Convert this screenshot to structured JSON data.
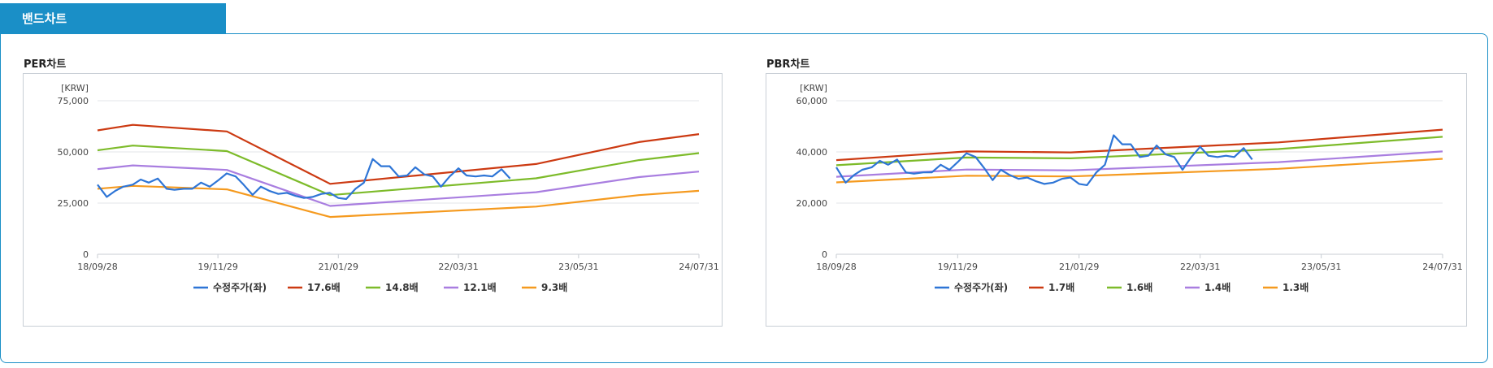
{
  "section_tab": {
    "label": "밴드차트"
  },
  "charts": [
    {
      "id": "per",
      "title": "PER차트",
      "unit": "[KRW]",
      "chart_data": {
        "type": "line",
        "title": "PER차트",
        "ylabel": "[KRW]",
        "ylim": [
          0,
          75000
        ],
        "yticks": [
          "75,000",
          "50,000",
          "25,000",
          "0"
        ],
        "ytick_values": [
          75000,
          50000,
          25000,
          0
        ],
        "xlim": [
          "2018-09-28",
          "2024-07-31"
        ],
        "xtick_labels": [
          "18/09/28",
          "19/11/29",
          "21/01/29",
          "22/03/31",
          "23/05/31",
          "24/07/31"
        ],
        "xtick_dates": [
          "2018-09-28",
          "2019-11-29",
          "2021-01-29",
          "2022-03-31",
          "2023-05-31",
          "2024-07-31"
        ],
        "grid": true,
        "legend": "bottom",
        "series": [
          {
            "name": "수정주가(좌)",
            "color": "#2e75d6",
            "x": [
              "2018-09-28",
              "2018-10-31",
              "2018-11-30",
              "2018-12-28",
              "2019-01-31",
              "2019-02-28",
              "2019-03-29",
              "2019-04-30",
              "2019-05-31",
              "2019-06-28",
              "2019-07-31",
              "2019-08-30",
              "2019-09-30",
              "2019-10-31",
              "2019-11-29",
              "2019-12-30",
              "2020-01-31",
              "2020-02-28",
              "2020-03-31",
              "2020-04-29",
              "2020-05-29",
              "2020-06-30",
              "2020-07-31",
              "2020-08-31",
              "2020-09-29",
              "2020-10-30",
              "2020-11-30",
              "2020-12-30",
              "2021-01-29",
              "2021-02-26",
              "2021-03-31",
              "2021-04-30",
              "2021-05-31",
              "2021-06-30",
              "2021-07-30",
              "2021-08-31",
              "2021-09-30",
              "2021-10-29",
              "2021-11-30",
              "2021-12-30",
              "2022-01-28",
              "2022-02-28",
              "2022-03-31",
              "2022-04-29",
              "2022-05-31",
              "2022-06-30",
              "2022-07-29",
              "2022-08-31",
              "2022-09-30"
            ],
            "values": [
              34000,
              28000,
              31000,
              33000,
              34000,
              36500,
              35000,
              37000,
              32000,
              31500,
              32000,
              32000,
              35000,
              33000,
              36000,
              39500,
              38000,
              34000,
              29000,
              33000,
              31000,
              29500,
              30000,
              28500,
              27500,
              28000,
              29500,
              30000,
              27500,
              27000,
              32000,
              35000,
              46500,
              43000,
              43000,
              38000,
              38500,
              42500,
              39000,
              38000,
              33000,
              38000,
              42000,
              38500,
              38000,
              38500,
              38000,
              41500,
              37000
            ]
          },
          {
            "name": "17.6배",
            "color": "#cc3a12",
            "x": [
              "2018-09-28",
              "2019-01-31",
              "2019-12-31",
              "2020-12-31",
              "2022-12-31",
              "2023-12-31",
              "2024-07-31"
            ],
            "values": [
              60500,
              63200,
              60000,
              34400,
              44100,
              54800,
              58700
            ]
          },
          {
            "name": "14.8배",
            "color": "#7dbb2a",
            "x": [
              "2018-09-28",
              "2019-01-31",
              "2019-12-31",
              "2020-12-31",
              "2022-12-31",
              "2023-12-31",
              "2024-07-31"
            ],
            "values": [
              50800,
              53100,
              50400,
              28900,
              37100,
              46000,
              49400
            ]
          },
          {
            "name": "12.1배",
            "color": "#a97ee0",
            "x": [
              "2018-09-28",
              "2019-01-31",
              "2019-12-31",
              "2020-12-31",
              "2022-12-31",
              "2023-12-31",
              "2024-07-31"
            ],
            "values": [
              41600,
              43400,
              41200,
              23600,
              30300,
              37700,
              40400
            ]
          },
          {
            "name": "9.3배",
            "color": "#f59a1f",
            "x": [
              "2018-09-28",
              "2019-01-31",
              "2019-12-31",
              "2020-12-31",
              "2022-12-31",
              "2023-12-31",
              "2024-07-31"
            ],
            "values": [
              32000,
              33400,
              31700,
              18200,
              23300,
              28900,
              31000
            ]
          }
        ]
      }
    },
    {
      "id": "pbr",
      "title": "PBR차트",
      "unit": "[KRW]",
      "chart_data": {
        "type": "line",
        "title": "PBR차트",
        "ylabel": "[KRW]",
        "ylim": [
          0,
          60000
        ],
        "yticks": [
          "60,000",
          "40,000",
          "20,000",
          "0"
        ],
        "ytick_values": [
          60000,
          40000,
          20000,
          0
        ],
        "xlim": [
          "2018-09-28",
          "2024-07-31"
        ],
        "xtick_labels": [
          "18/09/28",
          "19/11/29",
          "21/01/29",
          "22/03/31",
          "23/05/31",
          "24/07/31"
        ],
        "xtick_dates": [
          "2018-09-28",
          "2019-11-29",
          "2021-01-29",
          "2022-03-31",
          "2023-05-31",
          "2024-07-31"
        ],
        "grid": true,
        "legend": "bottom",
        "series": [
          {
            "name": "수정주가(좌)",
            "color": "#2e75d6",
            "x": [
              "2018-09-28",
              "2018-10-31",
              "2018-11-30",
              "2018-12-28",
              "2019-01-31",
              "2019-02-28",
              "2019-03-29",
              "2019-04-30",
              "2019-05-31",
              "2019-06-28",
              "2019-07-31",
              "2019-08-30",
              "2019-09-30",
              "2019-10-31",
              "2019-11-29",
              "2019-12-30",
              "2020-01-31",
              "2020-02-28",
              "2020-03-31",
              "2020-04-29",
              "2020-05-29",
              "2020-06-30",
              "2020-07-31",
              "2020-08-31",
              "2020-09-29",
              "2020-10-30",
              "2020-11-30",
              "2020-12-30",
              "2021-01-29",
              "2021-02-26",
              "2021-03-31",
              "2021-04-30",
              "2021-05-31",
              "2021-06-30",
              "2021-07-30",
              "2021-08-31",
              "2021-09-30",
              "2021-10-29",
              "2021-11-30",
              "2021-12-30",
              "2022-01-28",
              "2022-02-28",
              "2022-03-31",
              "2022-04-29",
              "2022-05-31",
              "2022-06-30",
              "2022-07-29",
              "2022-08-31",
              "2022-09-30"
            ],
            "values": [
              34000,
              28000,
              31000,
              33000,
              34000,
              36500,
              35000,
              37000,
              32000,
              31500,
              32000,
              32000,
              35000,
              33000,
              36000,
              39500,
              38000,
              34000,
              29000,
              33000,
              31000,
              29500,
              30000,
              28500,
              27500,
              28000,
              29500,
              30000,
              27500,
              27000,
              32000,
              35000,
              46500,
              43000,
              43000,
              38000,
              38500,
              42500,
              39000,
              38000,
              33000,
              38000,
              42000,
              38500,
              38000,
              38500,
              38000,
              41500,
              37000
            ]
          },
          {
            "name": "1.7배",
            "color": "#cc3a12",
            "x": [
              "2018-09-28",
              "2019-12-31",
              "2020-12-31",
              "2022-12-31",
              "2024-07-31"
            ],
            "values": [
              36800,
              40200,
              39800,
              43700,
              48700
            ]
          },
          {
            "name": "1.6배",
            "color": "#7dbb2a",
            "x": [
              "2018-09-28",
              "2019-12-31",
              "2020-12-31",
              "2022-12-31",
              "2024-07-31"
            ],
            "values": [
              34800,
              37800,
              37500,
              41100,
              45900
            ]
          },
          {
            "name": "1.4배",
            "color": "#a97ee0",
            "x": [
              "2018-09-28",
              "2019-12-31",
              "2020-12-31",
              "2022-12-31",
              "2024-07-31"
            ],
            "values": [
              30300,
              33100,
              32800,
              36000,
              40200
            ]
          },
          {
            "name": "1.3배",
            "color": "#f59a1f",
            "x": [
              "2018-09-28",
              "2019-12-31",
              "2020-12-31",
              "2022-12-31",
              "2024-07-31"
            ],
            "values": [
              28100,
              30700,
              30400,
              33400,
              37300
            ]
          }
        ]
      }
    }
  ]
}
